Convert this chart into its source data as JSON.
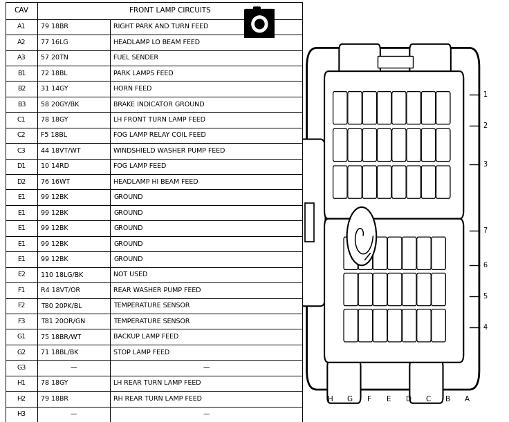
{
  "title": "FRONT LAMP CIRCUITS",
  "col_header": "CAV",
  "rows": [
    [
      "A1",
      "79 18BR",
      "RIGHT PARK AND TURN FEED"
    ],
    [
      "A2",
      "77 16LG",
      "HEADLAMP LO BEAM FEED"
    ],
    [
      "A3",
      "57 20TN",
      "FUEL SENDER"
    ],
    [
      "B1",
      "72 18BL",
      "PARK LAMPS FEED"
    ],
    [
      "B2",
      "31 14GY",
      "HORN FEED"
    ],
    [
      "B3",
      "58 20GY/BK",
      "BRAKE INDICATOR GROUND"
    ],
    [
      "C1",
      "78 18GY",
      "LH FRONT TURN LAMP FEED"
    ],
    [
      "C2",
      "F5 18BL",
      "FOG LAMP RELAY COIL FEED"
    ],
    [
      "C3",
      "44 18VT/WT",
      "WINDSHIELD WASHER PUMP FEED"
    ],
    [
      "D1",
      "10 14RD",
      "FOG LAMP FEED"
    ],
    [
      "D2",
      "76 16WT",
      "HEADLAMP HI BEAM FEED"
    ],
    [
      "E1",
      "99 12BK",
      "GROUND"
    ],
    [
      "E1",
      "99 12BK",
      "GROUND"
    ],
    [
      "E1",
      "99 12BK",
      "GROUND"
    ],
    [
      "E1",
      "99 12BK",
      "GROUND"
    ],
    [
      "E1",
      "99 12BK",
      "GROUND"
    ],
    [
      "E2",
      "110 18LG/BK",
      "NOT USED"
    ],
    [
      "F1",
      "R4 18VT/OR",
      "REAR WASHER PUMP FEED"
    ],
    [
      "F2",
      "T80 20PK/BL",
      "TEMPERATURE SENSOR"
    ],
    [
      "F3",
      "T81 20OR/GN",
      "TEMPERATURE SENSOR"
    ],
    [
      "G1",
      "75 18BR/WT",
      "BACKUP LAMP FEED"
    ],
    [
      "G2",
      "71 18BL/BK",
      "STOP LAMP FEED"
    ],
    [
      "G3",
      "—",
      "—"
    ],
    [
      "H1",
      "78 18GY",
      "LH REAR TURN LAMP FEED"
    ],
    [
      "H2",
      "79 18BR",
      "RH REAR TURN LAMP FEED"
    ],
    [
      "H3",
      "—",
      "—"
    ]
  ],
  "bg_color": "#ffffff",
  "text_color": "#000000",
  "line_color": "#000000",
  "connector_labels_bottom": [
    "H",
    "G",
    "F",
    "E",
    "D",
    "C",
    "B",
    "A"
  ],
  "connector_labels_right": [
    "1",
    "2",
    "3",
    "7",
    "6",
    "5",
    "4"
  ]
}
